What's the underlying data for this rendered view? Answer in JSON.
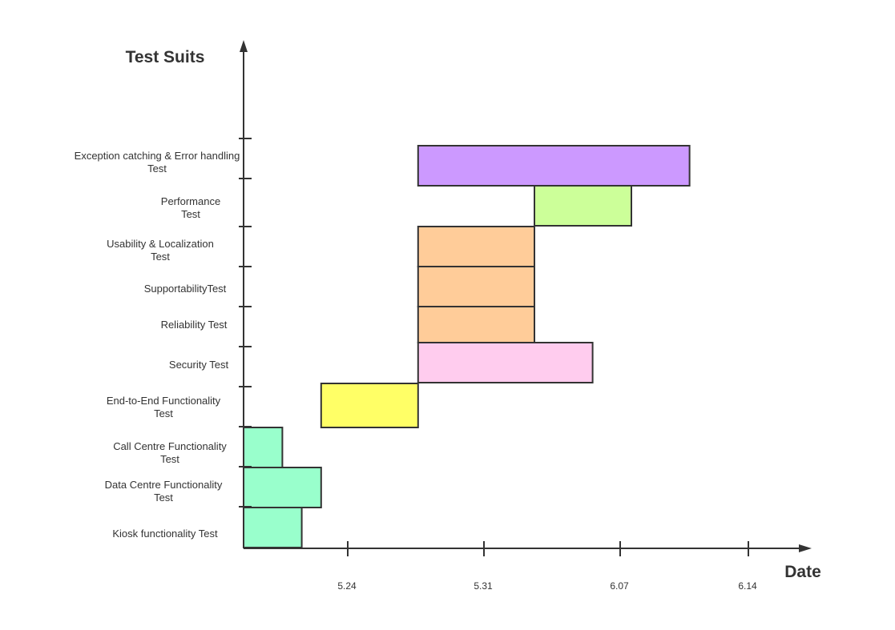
{
  "chart_data": {
    "type": "bar",
    "subtype": "gantt",
    "y_title": "Test Suits",
    "x_title": "Date",
    "x_ticks": [
      "5.24",
      "5.31",
      "6.07",
      "6.14"
    ],
    "categories": [
      {
        "lines": [
          "Exception catching & Error handling",
          "Test"
        ]
      },
      {
        "lines": [
          "Performance",
          "Test"
        ]
      },
      {
        "lines": [
          "Usability & Localization",
          "Test"
        ]
      },
      {
        "lines": [
          "SupportabilityTest"
        ]
      },
      {
        "lines": [
          "Reliability Test"
        ]
      },
      {
        "lines": [
          "Security Test"
        ]
      },
      {
        "lines": [
          "End-to-End Functionality",
          "Test"
        ]
      },
      {
        "lines": [
          "Call Centre Functionality",
          "Test"
        ]
      },
      {
        "lines": [
          "Data Centre Functionality",
          "Test"
        ]
      },
      {
        "lines": [
          "Kiosk functionality Test"
        ]
      }
    ],
    "tasks": [
      {
        "name": "Exception catching & Error handling Test",
        "start": "05-28",
        "end": "06-11",
        "color": "#cc99ff"
      },
      {
        "name": "Performance Test",
        "start": "06-03",
        "end": "06-08",
        "color": "#ccff99"
      },
      {
        "name": "Usability & Localization Test",
        "start": "05-28",
        "end": "06-03",
        "color": "#ffcc99"
      },
      {
        "name": "SupportabilityTest",
        "start": "05-28",
        "end": "06-03",
        "color": "#ffcc99"
      },
      {
        "name": "Reliability Test",
        "start": "05-28",
        "end": "06-03",
        "color": "#ffcc99"
      },
      {
        "name": "Security Test",
        "start": "05-28",
        "end": "06-06",
        "color": "#ffccee"
      },
      {
        "name": "End-to-End Functionality Test",
        "start": "05-23",
        "end": "05-28",
        "color": "#ffff66"
      },
      {
        "name": "Call Centre Functionality Test",
        "start": "05-19",
        "end": "05-21",
        "color": "#99ffcc"
      },
      {
        "name": "Data Centre Functionality Test",
        "start": "05-19",
        "end": "05-23",
        "color": "#99ffcc"
      },
      {
        "name": "Kiosk functionality Test",
        "start": "05-19",
        "end": "05-22",
        "color": "#99ffcc"
      }
    ],
    "grid": false,
    "legend": "none"
  }
}
